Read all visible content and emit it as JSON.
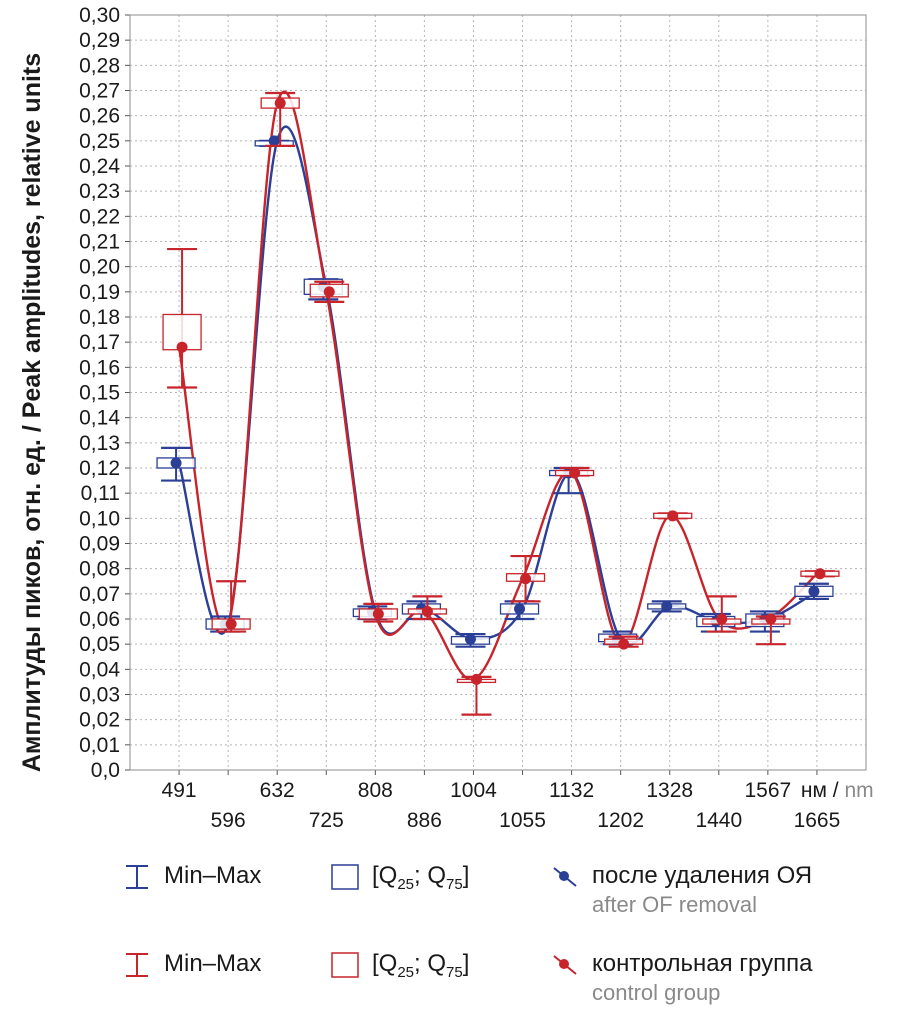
{
  "chart_data": {
    "type": "box",
    "ylabel_ru": "Амплитуды пиков, отн. ед.",
    "ylabel_sep": " / ",
    "ylabel_en": "Peak amplitudes, relative units",
    "xunit_ru": "нм",
    "xunit_sep": " / ",
    "xunit_en": "nm",
    "ylim": [
      0,
      0.3
    ],
    "y_ticks": [
      "0,0",
      "0,01",
      "0,02",
      "0,03",
      "0,04",
      "0,05",
      "0,06",
      "0,07",
      "0,08",
      "0,09",
      "0,10",
      "0,11",
      "0,12",
      "0,13",
      "0,14",
      "0,15",
      "0,16",
      "0,17",
      "0,18",
      "0,19",
      "0,20",
      "0,21",
      "0,22",
      "0,23",
      "0,24",
      "0,25",
      "0,26",
      "0,27",
      "0,28",
      "0,29",
      "0,30"
    ],
    "categories": [
      "491",
      "596",
      "632",
      "725",
      "808",
      "886",
      "1004",
      "1055",
      "1132",
      "1202",
      "1328",
      "1440",
      "1567",
      "1665"
    ],
    "grid": true,
    "series": [
      {
        "color": "#2b3f96",
        "median": [
          0.122,
          0.058,
          0.25,
          0.192,
          0.063,
          0.064,
          0.052,
          0.064,
          0.118,
          0.052,
          0.065,
          0.059,
          0.06,
          0.071
        ],
        "q25": [
          0.12,
          0.056,
          0.248,
          0.189,
          0.061,
          0.062,
          0.05,
          0.062,
          0.117,
          0.051,
          0.064,
          0.057,
          0.057,
          0.069
        ],
        "q75": [
          0.124,
          0.06,
          0.25,
          0.195,
          0.064,
          0.066,
          0.053,
          0.066,
          0.119,
          0.054,
          0.066,
          0.061,
          0.062,
          0.073
        ],
        "min": [
          0.115,
          0.055,
          0.248,
          0.187,
          0.06,
          0.06,
          0.049,
          0.06,
          0.11,
          0.05,
          0.063,
          0.055,
          0.055,
          0.068
        ],
        "max": [
          0.128,
          0.061,
          0.25,
          0.195,
          0.065,
          0.067,
          0.054,
          0.067,
          0.12,
          0.055,
          0.067,
          0.062,
          0.063,
          0.074
        ]
      },
      {
        "color": "#c8242b",
        "median": [
          0.168,
          0.058,
          0.265,
          0.19,
          0.062,
          0.063,
          0.036,
          0.076,
          0.118,
          0.05,
          0.101,
          0.06,
          0.06,
          0.078
        ],
        "q25": [
          0.167,
          0.056,
          0.263,
          0.188,
          0.06,
          0.062,
          0.036,
          0.075,
          0.117,
          0.05,
          0.1,
          0.058,
          0.058,
          0.077
        ],
        "q75": [
          0.181,
          0.06,
          0.267,
          0.193,
          0.064,
          0.064,
          0.036,
          0.078,
          0.119,
          0.052,
          0.102,
          0.06,
          0.06,
          0.079
        ],
        "min": [
          0.152,
          0.055,
          0.248,
          0.186,
          0.059,
          0.06,
          0.022,
          0.067,
          0.117,
          0.049,
          0.1,
          0.055,
          0.05,
          0.077
        ],
        "max": [
          0.207,
          0.075,
          0.269,
          0.194,
          0.066,
          0.069,
          0.037,
          0.085,
          0.12,
          0.053,
          0.102,
          0.069,
          0.061,
          0.079
        ]
      }
    ]
  },
  "legend": {
    "minmax_label": "Min–Max",
    "q_open": "[Q",
    "q_sub1": "25",
    "q_mid": "; Q",
    "q_sub2": "75",
    "q_close": "]",
    "blue_ru": "после удаления ОЯ",
    "blue_en": "after OF removal",
    "red_ru": "контрольная группа",
    "red_en": "control group"
  }
}
